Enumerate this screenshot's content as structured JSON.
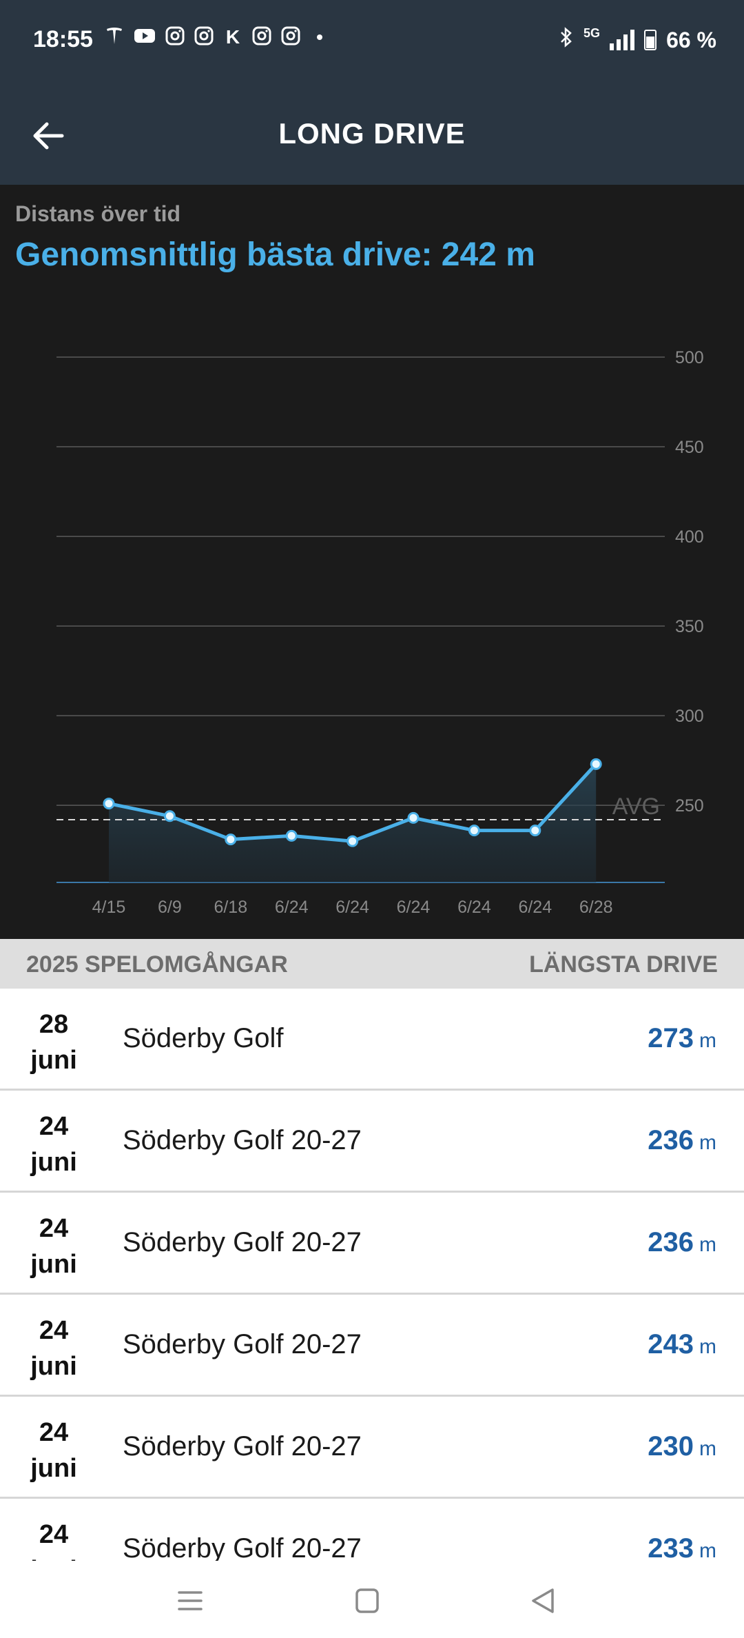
{
  "status_bar": {
    "time": "18:55",
    "notification_icons": [
      "tesla-icon",
      "youtube-icon",
      "instagram-icon",
      "instagram-icon",
      "k-icon",
      "instagram-icon",
      "instagram-icon",
      "dot-icon"
    ],
    "k_glyph": "K",
    "network": "5G",
    "battery": "66 %"
  },
  "app_bar": {
    "title": "LONG DRIVE"
  },
  "chart_header": {
    "subtitle": "Distans över tid",
    "headline": "Genomsnittlig bästa drive: 242 m",
    "accent_color": "#4ab0e8"
  },
  "chart_data": {
    "type": "area",
    "categories": [
      "4/15",
      "6/9",
      "6/18",
      "6/24",
      "6/24",
      "6/24",
      "6/24",
      "6/24",
      "6/28"
    ],
    "series": [
      {
        "values": [
          251,
          244,
          231,
          233,
          230,
          243,
          236,
          236,
          273
        ]
      }
    ],
    "yticks": [
      250,
      300,
      350,
      400,
      450,
      500
    ],
    "ylim": [
      207,
      500
    ],
    "average": {
      "label": "AVG",
      "value": 242
    },
    "grid": true,
    "axis_side": "right",
    "line_color": "#4ab0e8"
  },
  "table": {
    "header_left": "2025 SPELOMGÅNGAR",
    "header_right": "LÄNGSTA DRIVE",
    "unit": "m",
    "rows": [
      {
        "day": "28",
        "month": "juni",
        "course": "Söderby Golf",
        "value": "273"
      },
      {
        "day": "24",
        "month": "juni",
        "course": "Söderby Golf 20-27",
        "value": "236"
      },
      {
        "day": "24",
        "month": "juni",
        "course": "Söderby Golf 20-27",
        "value": "236"
      },
      {
        "day": "24",
        "month": "juni",
        "course": "Söderby Golf 20-27",
        "value": "243"
      },
      {
        "day": "24",
        "month": "juni",
        "course": "Söderby Golf 20-27",
        "value": "230"
      },
      {
        "day": "24",
        "month": "juni",
        "course": "Söderby Golf 20-27",
        "value": "233"
      }
    ]
  },
  "nav_bar": {
    "buttons": [
      "recents-icon",
      "home-icon",
      "back-triangle-icon"
    ]
  }
}
